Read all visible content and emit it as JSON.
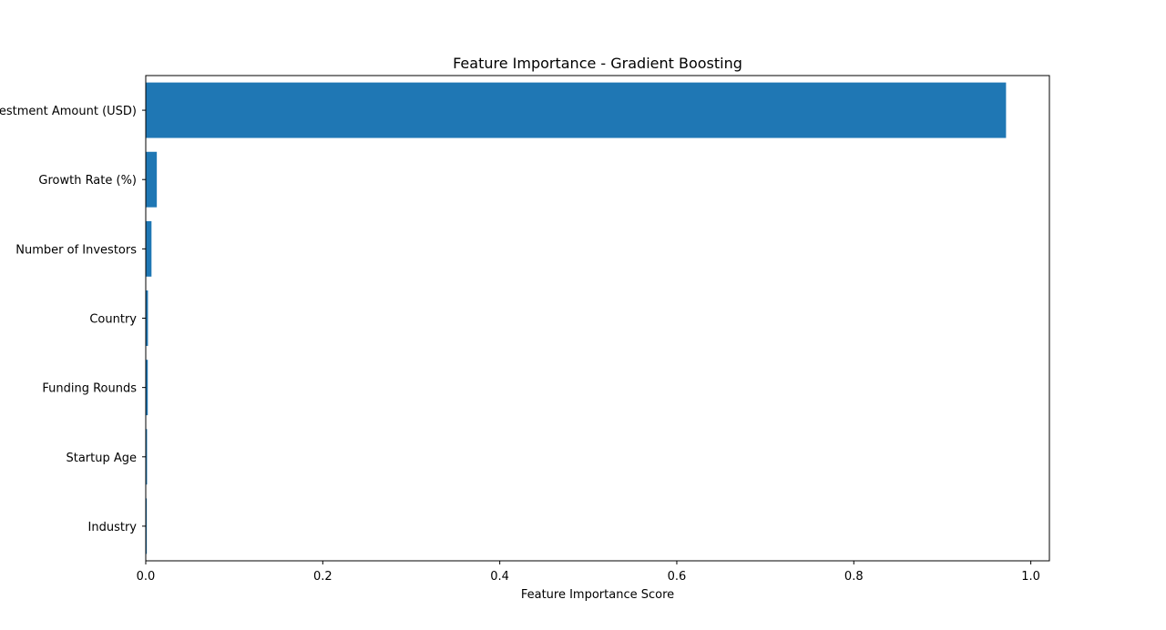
{
  "chart_data": {
    "type": "bar",
    "orientation": "horizontal",
    "title": "Feature Importance - Gradient Boosting",
    "xlabel": "Feature Importance Score",
    "ylabel": "",
    "categories": [
      "Investment Amount (USD)",
      "Growth Rate (%)",
      "Number of Investors",
      "Country",
      "Funding Rounds",
      "Startup Age",
      "Industry"
    ],
    "values": [
      0.972,
      0.0125,
      0.0065,
      0.0025,
      0.0023,
      0.0015,
      0.0012
    ],
    "xlim": [
      0,
      1.021
    ],
    "xticks": [
      "0.0",
      "0.2",
      "0.4",
      "0.6",
      "0.8",
      "1.0"
    ],
    "bar_color": "#1f77b4",
    "grid": false,
    "legend": "none"
  }
}
